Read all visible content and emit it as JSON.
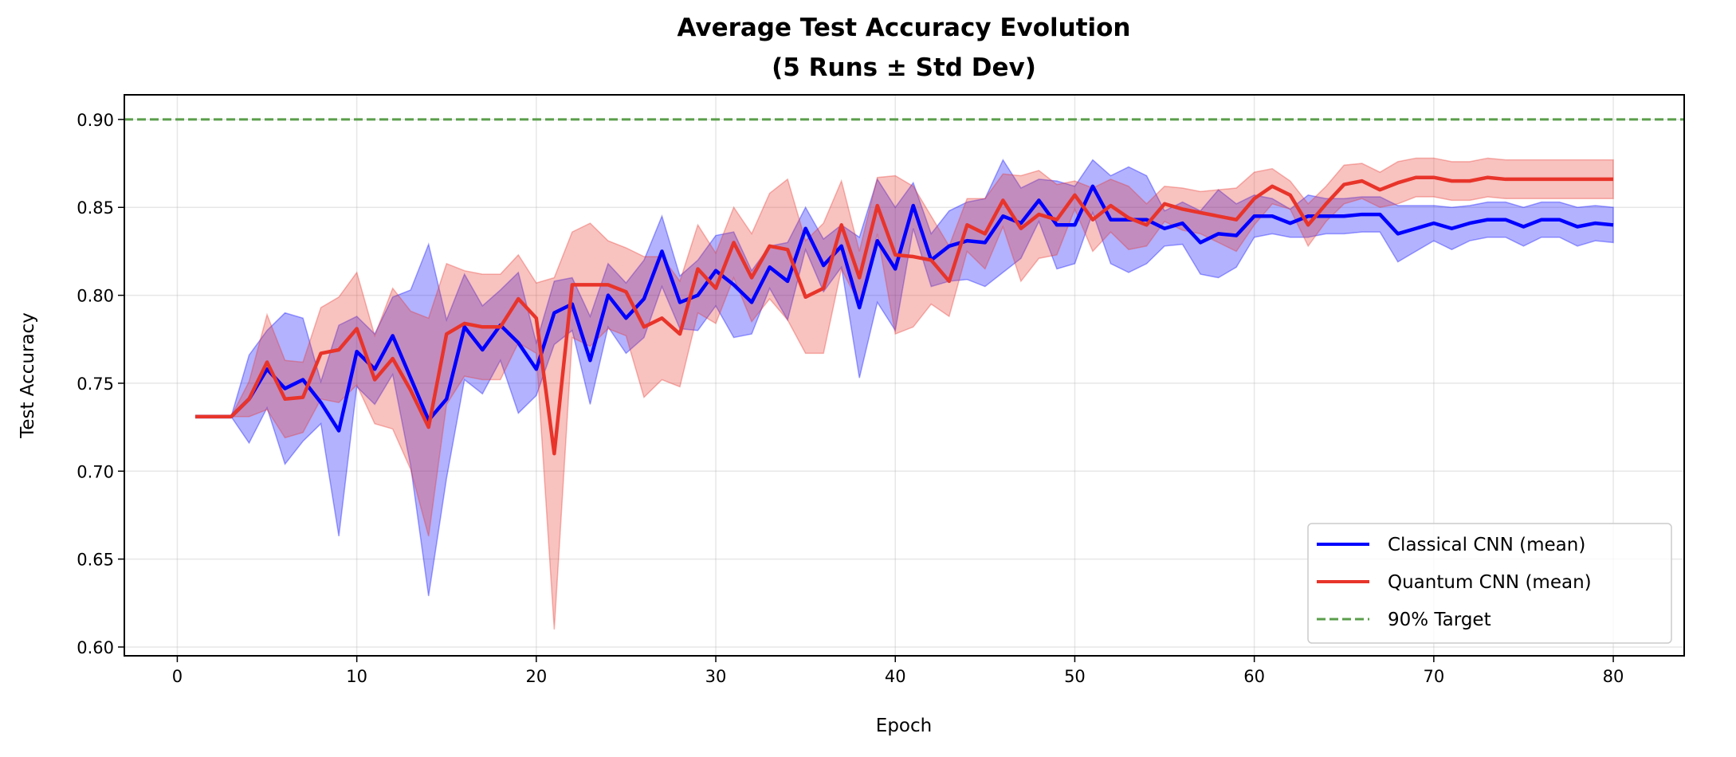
{
  "chart_data": {
    "type": "line",
    "title": "Average Test Accuracy Evolution",
    "subtitle": "(5 Runs ± Std Dev)",
    "xlabel": "Epoch",
    "ylabel": "Test Accuracy",
    "xlim": [
      -2.95,
      83.95
    ],
    "ylim": [
      0.595,
      0.914
    ],
    "xticks": [
      0,
      10,
      20,
      30,
      40,
      50,
      60,
      70,
      80
    ],
    "yticks": [
      0.6,
      0.65,
      0.7,
      0.75,
      0.8,
      0.85,
      0.9
    ],
    "ytick_labels": [
      "0.60",
      "0.65",
      "0.70",
      "0.75",
      "0.80",
      "0.85",
      "0.90"
    ],
    "grid": true,
    "legend_position": "lower-right",
    "x_start": 1,
    "series": [
      {
        "name": "Classical CNN (mean)",
        "color": "#0000ff",
        "band_color": "#0000ff",
        "mean": [
          0.731,
          0.731,
          0.731,
          0.741,
          0.758,
          0.747,
          0.752,
          0.739,
          0.723,
          0.768,
          0.758,
          0.777,
          0.753,
          0.729,
          0.741,
          0.782,
          0.769,
          0.783,
          0.773,
          0.758,
          0.79,
          0.795,
          0.763,
          0.8,
          0.787,
          0.798,
          0.825,
          0.796,
          0.8,
          0.814,
          0.806,
          0.796,
          0.816,
          0.808,
          0.838,
          0.817,
          0.828,
          0.793,
          0.831,
          0.815,
          0.851,
          0.82,
          0.828,
          0.831,
          0.83,
          0.845,
          0.841,
          0.854,
          0.84,
          0.84,
          0.862,
          0.843,
          0.843,
          0.843,
          0.838,
          0.841,
          0.83,
          0.835,
          0.834,
          0.845,
          0.845,
          0.841,
          0.845,
          0.845,
          0.845,
          0.846,
          0.846,
          0.835,
          0.838,
          0.841,
          0.838,
          0.841,
          0.843,
          0.843,
          0.839,
          0.843,
          0.843,
          0.839,
          0.841,
          0.84
        ],
        "std": [
          0,
          0,
          0,
          0.025,
          0.022,
          0.043,
          0.035,
          0.012,
          0.06,
          0.02,
          0.02,
          0.022,
          0.05,
          0.1,
          0.045,
          0.03,
          0.025,
          0.02,
          0.04,
          0.015,
          0.018,
          0.015,
          0.025,
          0.018,
          0.02,
          0.022,
          0.02,
          0.015,
          0.02,
          0.02,
          0.03,
          0.018,
          0.012,
          0.022,
          0.012,
          0.015,
          0.012,
          0.04,
          0.035,
          0.035,
          0.013,
          0.015,
          0.02,
          0.022,
          0.025,
          0.032,
          0.02,
          0.012,
          0.025,
          0.022,
          0.015,
          0.025,
          0.03,
          0.025,
          0.01,
          0.012,
          0.018,
          0.025,
          0.018,
          0.012,
          0.01,
          0.008,
          0.012,
          0.01,
          0.01,
          0.01,
          0.01,
          0.016,
          0.013,
          0.01,
          0.012,
          0.01,
          0.01,
          0.01,
          0.011,
          0.01,
          0.01,
          0.011,
          0.01,
          0.01
        ]
      },
      {
        "name": "Quantum CNN (mean)",
        "color": "#e8342a",
        "band_color": "#e8342a",
        "mean": [
          0.731,
          0.731,
          0.731,
          0.741,
          0.762,
          0.741,
          0.742,
          0.767,
          0.769,
          0.781,
          0.752,
          0.764,
          0.746,
          0.725,
          0.778,
          0.784,
          0.782,
          0.782,
          0.798,
          0.787,
          0.71,
          0.806,
          0.806,
          0.806,
          0.802,
          0.782,
          0.787,
          0.778,
          0.815,
          0.804,
          0.83,
          0.81,
          0.828,
          0.826,
          0.799,
          0.804,
          0.84,
          0.81,
          0.851,
          0.823,
          0.822,
          0.82,
          0.808,
          0.84,
          0.835,
          0.854,
          0.838,
          0.846,
          0.843,
          0.857,
          0.843,
          0.851,
          0.844,
          0.84,
          0.852,
          0.849,
          0.847,
          0.845,
          0.843,
          0.855,
          0.862,
          0.857,
          0.84,
          0.852,
          0.863,
          0.865,
          0.86,
          0.864,
          0.867,
          0.867,
          0.865,
          0.865,
          0.867,
          0.866,
          0.866,
          0.866,
          0.866,
          0.866,
          0.866,
          0.866
        ],
        "std": [
          0,
          0,
          0,
          0.01,
          0.027,
          0.022,
          0.02,
          0.026,
          0.03,
          0.032,
          0.025,
          0.04,
          0.045,
          0.062,
          0.04,
          0.03,
          0.03,
          0.03,
          0.025,
          0.02,
          0.1,
          0.03,
          0.035,
          0.025,
          0.025,
          0.04,
          0.035,
          0.03,
          0.025,
          0.02,
          0.02,
          0.025,
          0.03,
          0.04,
          0.032,
          0.037,
          0.025,
          0.015,
          0.016,
          0.045,
          0.04,
          0.025,
          0.02,
          0.015,
          0.02,
          0.015,
          0.03,
          0.025,
          0.02,
          0.008,
          0.018,
          0.015,
          0.018,
          0.012,
          0.01,
          0.012,
          0.012,
          0.015,
          0.018,
          0.015,
          0.01,
          0.008,
          0.012,
          0.01,
          0.011,
          0.01,
          0.01,
          0.012,
          0.011,
          0.011,
          0.011,
          0.011,
          0.011,
          0.011,
          0.011,
          0.011,
          0.011,
          0.011,
          0.011,
          0.011
        ]
      }
    ],
    "reference_line": {
      "name": "90% Target",
      "y": 0.9,
      "color": "#5a9e4b",
      "style": "dashed"
    }
  }
}
